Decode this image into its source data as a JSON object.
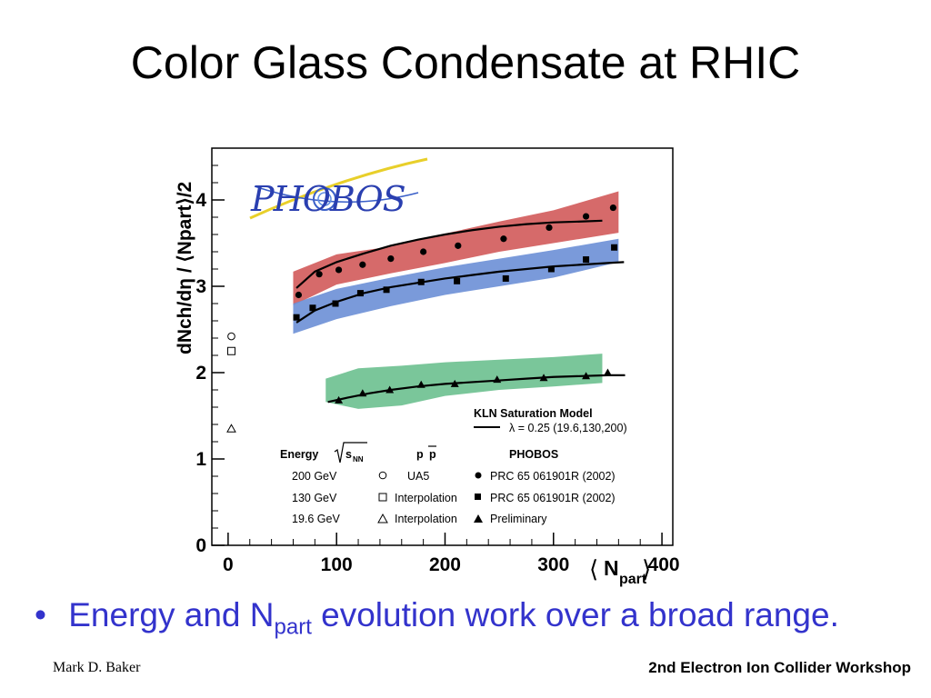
{
  "slide": {
    "title": "Color Glass Condensate at RHIC",
    "bullet": {
      "marker": "•",
      "text_before": "Energy and N",
      "subscript": "part",
      "text_after": " evolution work over a broad range."
    },
    "footer_left": "Mark D. Baker",
    "footer_right": "2nd Electron Ion Collider Workshop"
  },
  "colors": {
    "red_band": "#d25a5a",
    "blue_band": "#6b8fd6",
    "green_band": "#6cc08f",
    "bullet_text": "#3333cc"
  },
  "chart_data": {
    "type": "scatter",
    "logo_text": "PHOBOS",
    "xlabel": {
      "main": "N",
      "sub": "part",
      "left_bracket": "⟨",
      "right_bracket": "⟩"
    },
    "ylabel": "dNch/dη / ⟨Npart⟩/2",
    "xlim": [
      -15,
      410
    ],
    "ylim": [
      0,
      4.6
    ],
    "xticks": [
      0,
      100,
      200,
      300,
      400
    ],
    "yticks": [
      0,
      1,
      2,
      3,
      4
    ],
    "grid": false,
    "legend_title": {
      "energy": "Energy",
      "sqrt_s": "s",
      "sqrt_sub": "NN",
      "pp": "p",
      "pbar": "p",
      "phobos": "PHOBOS"
    },
    "legend_rows": [
      {
        "energy": "200 GeV",
        "pp_label": "UA5",
        "phobos_label": "PRC 65 061901R (2002)"
      },
      {
        "energy": "130 GeV",
        "pp_label": "Interpolation",
        "phobos_label": "PRC 65 061901R (2002)"
      },
      {
        "energy": "19.6 GeV",
        "pp_label": "Interpolation",
        "phobos_label": "Preliminary"
      }
    ],
    "model": {
      "title": "KLN Saturation Model",
      "label": "λ = 0.25  (19.6,130,200)"
    },
    "series": [
      {
        "name": "200 GeV",
        "marker": "circle",
        "band": "red",
        "x": [
          65,
          84,
          102,
          124,
          150,
          180,
          212,
          254,
          296,
          330,
          355
        ],
        "y": [
          2.9,
          3.14,
          3.19,
          3.25,
          3.32,
          3.4,
          3.47,
          3.55,
          3.68,
          3.81,
          3.91
        ],
        "band_low": [
          2.78,
          3.02,
          3.15,
          3.27,
          3.4,
          3.5,
          3.62
        ],
        "band_high": [
          3.17,
          3.37,
          3.46,
          3.61,
          3.75,
          3.88,
          4.1
        ],
        "band_x": [
          60,
          100,
          150,
          200,
          250,
          300,
          360
        ],
        "model_x": [
          63,
          80,
          100,
          125,
          150,
          175,
          200,
          225,
          250,
          275,
          300,
          325,
          345
        ],
        "model_y": [
          2.98,
          3.17,
          3.28,
          3.38,
          3.47,
          3.54,
          3.6,
          3.65,
          3.69,
          3.72,
          3.74,
          3.75,
          3.76
        ]
      },
      {
        "name": "130 GeV",
        "marker": "square",
        "band": "blue",
        "x": [
          63,
          78,
          99,
          122,
          146,
          178,
          211,
          256,
          298,
          330,
          356
        ],
        "y": [
          2.64,
          2.75,
          2.8,
          2.92,
          2.96,
          3.05,
          3.06,
          3.09,
          3.2,
          3.31,
          3.45
        ],
        "band_low": [
          2.45,
          2.62,
          2.77,
          2.9,
          3.0,
          3.1,
          3.28
        ],
        "band_high": [
          2.8,
          2.97,
          3.1,
          3.22,
          3.32,
          3.42,
          3.55
        ],
        "band_x": [
          60,
          100,
          150,
          200,
          250,
          300,
          360
        ],
        "model_x": [
          63,
          80,
          100,
          125,
          150,
          175,
          200,
          225,
          250,
          275,
          300,
          325,
          350,
          365
        ],
        "model_y": [
          2.58,
          2.72,
          2.82,
          2.92,
          2.99,
          3.04,
          3.09,
          3.13,
          3.17,
          3.2,
          3.23,
          3.25,
          3.27,
          3.28
        ]
      },
      {
        "name": "19.6 GeV",
        "marker": "triangle",
        "band": "green",
        "x": [
          102,
          124,
          149,
          178,
          209,
          248,
          291,
          330,
          350
        ],
        "y": [
          1.68,
          1.76,
          1.8,
          1.86,
          1.87,
          1.92,
          1.94,
          1.96,
          2.0
        ],
        "band_low": [
          1.66,
          1.58,
          1.62,
          1.73,
          1.8,
          1.84,
          1.88
        ],
        "band_high": [
          1.93,
          2.05,
          2.08,
          2.12,
          2.15,
          2.18,
          2.22
        ],
        "band_x": [
          90,
          120,
          160,
          200,
          250,
          300,
          345
        ],
        "model_x": [
          92,
          110,
          130,
          150,
          175,
          200,
          225,
          250,
          275,
          300,
          325,
          350,
          366
        ],
        "model_y": [
          1.66,
          1.71,
          1.76,
          1.8,
          1.84,
          1.87,
          1.89,
          1.91,
          1.93,
          1.95,
          1.96,
          1.97,
          1.97
        ]
      }
    ],
    "pp_points": [
      {
        "name": "200 GeV",
        "marker": "circle",
        "x": 3,
        "y": 2.42
      },
      {
        "name": "130 GeV",
        "marker": "square",
        "x": 3,
        "y": 2.25
      },
      {
        "name": "19.6 GeV",
        "marker": "triangle",
        "x": 3,
        "y": 1.35
      }
    ]
  }
}
